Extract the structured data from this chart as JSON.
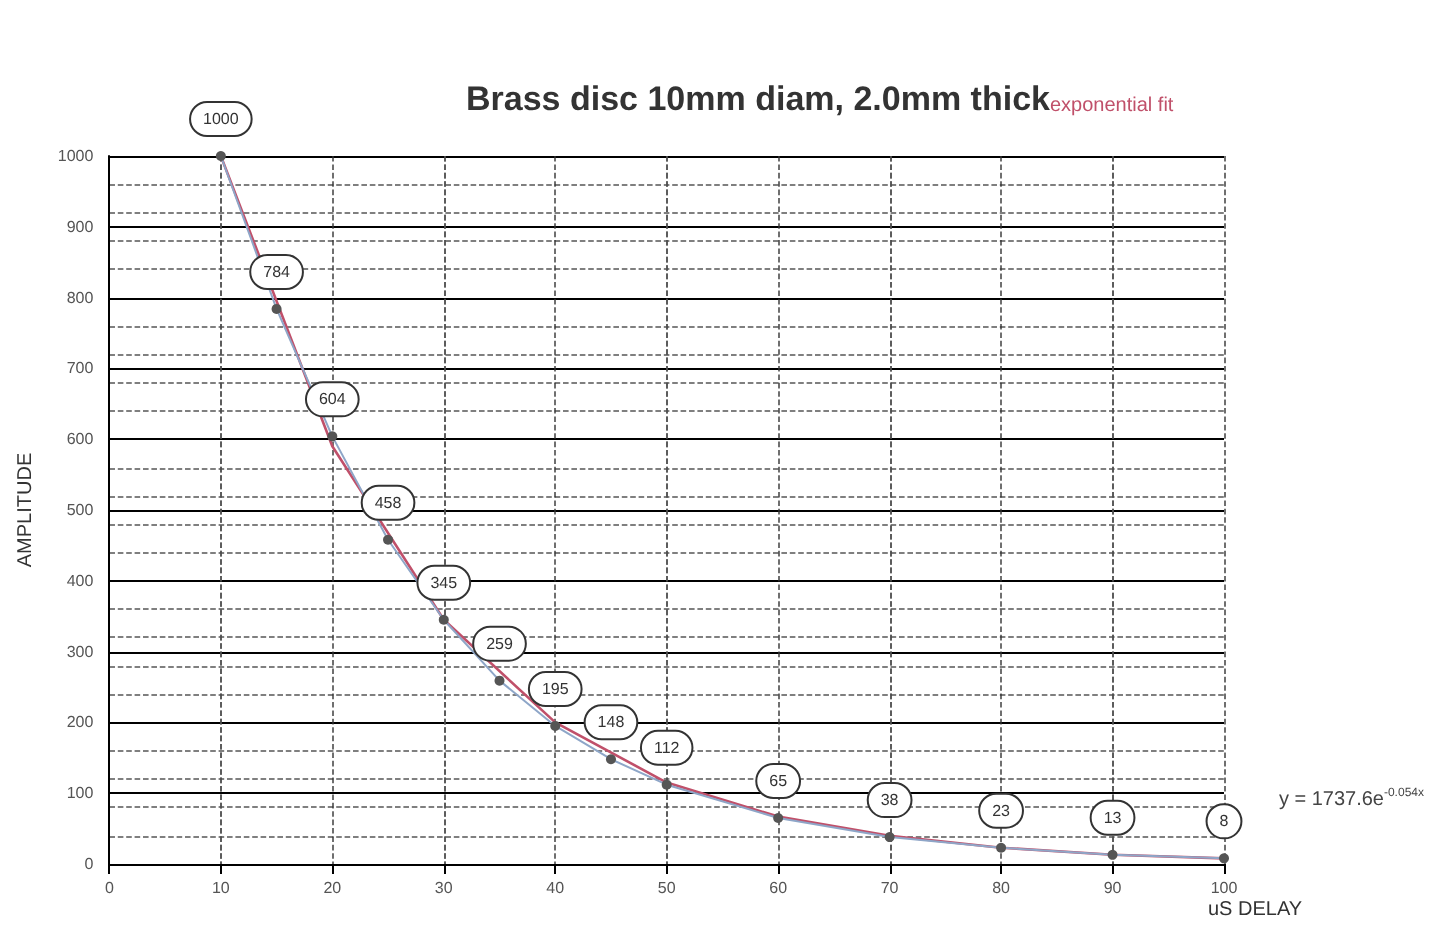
{
  "chart_data": {
    "type": "line",
    "title": "Brass disc 10mm diam, 2.0mm thick",
    "subtitle": "exponential fit",
    "xlabel": "uS DELAY",
    "ylabel": "AMPLITUDE",
    "x": [
      10,
      15,
      20,
      25,
      30,
      35,
      40,
      45,
      50,
      60,
      70,
      80,
      90,
      100
    ],
    "series": [
      {
        "color": "#8ea6c8",
        "values": [
          1000,
          784,
          604,
          458,
          345,
          259,
          195,
          148,
          112,
          65,
          38,
          23,
          13,
          8
        ],
        "data_labels": true,
        "marker": "circle"
      },
      {
        "type": "line",
        "color": "#c0506a",
        "x": [
          10,
          20,
          30,
          40,
          50,
          60,
          70,
          80,
          90,
          100
        ],
        "values": [
          1000,
          590,
          345,
          200,
          115,
          67,
          40,
          23,
          13,
          8
        ],
        "marker": "none"
      }
    ],
    "xlim": [
      0,
      100
    ],
    "xticks": [
      0,
      10,
      20,
      30,
      40,
      50,
      60,
      70,
      80,
      90,
      100
    ],
    "ylim": [
      0,
      1000
    ],
    "yticks": [
      0,
      100,
      200,
      300,
      400,
      500,
      600,
      700,
      800,
      900,
      1000
    ],
    "grid": true,
    "annotations": [
      "y = 1737.6e$^{-0.054x}$"
    ]
  }
}
